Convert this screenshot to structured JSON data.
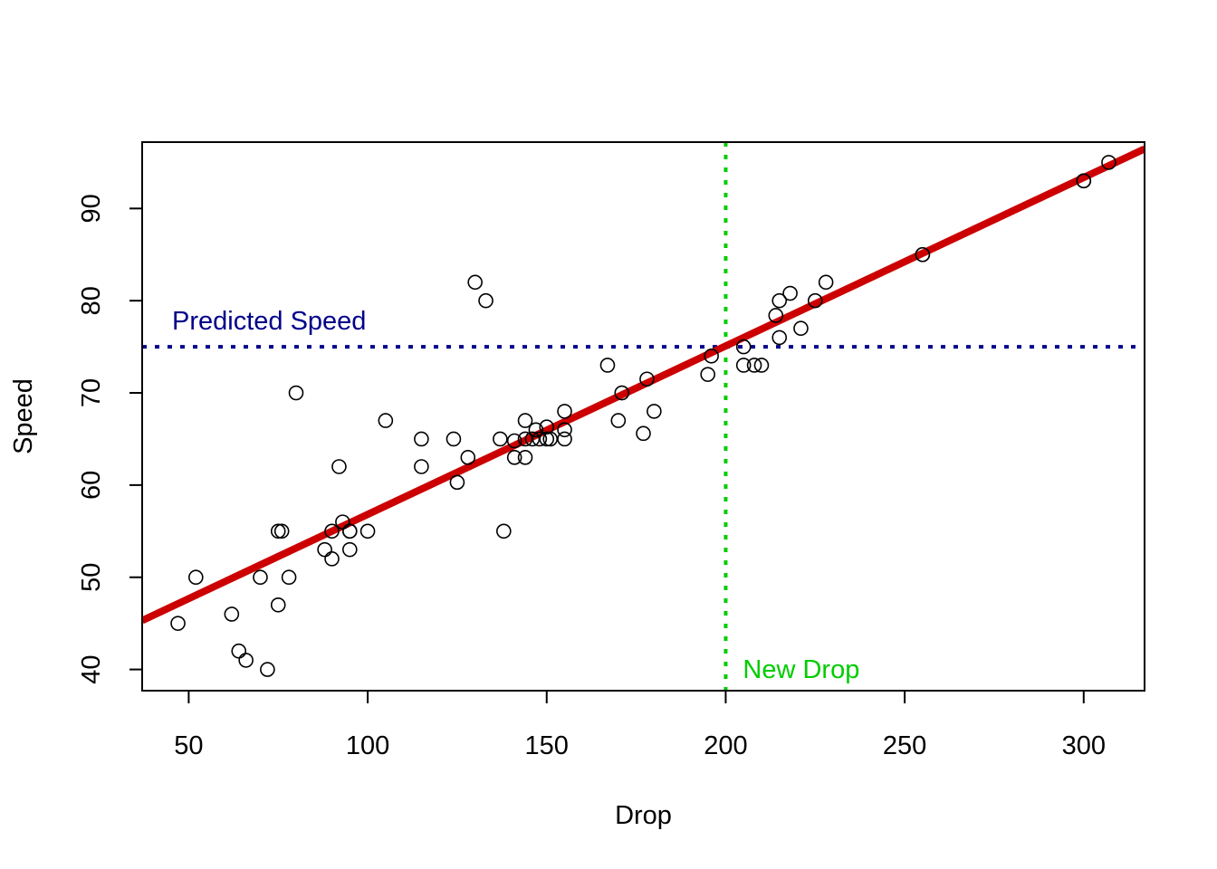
{
  "chart_data": {
    "type": "scatter",
    "title": "",
    "xlabel": "Drop",
    "ylabel": "Speed",
    "xlim": [
      37,
      317
    ],
    "ylim": [
      37.7,
      97.2
    ],
    "x_ticks": [
      50,
      100,
      150,
      200,
      250,
      300
    ],
    "y_ticks": [
      40,
      50,
      60,
      70,
      80,
      90
    ],
    "grid": false,
    "legend": "none",
    "points": [
      [
        47,
        45
      ],
      [
        52,
        50
      ],
      [
        62,
        46
      ],
      [
        64,
        42
      ],
      [
        66,
        41
      ],
      [
        70,
        50
      ],
      [
        72,
        40
      ],
      [
        75,
        47
      ],
      [
        75,
        55
      ],
      [
        76,
        55
      ],
      [
        78,
        50
      ],
      [
        80,
        70
      ],
      [
        88,
        53
      ],
      [
        90,
        52
      ],
      [
        90,
        55
      ],
      [
        92,
        62
      ],
      [
        93,
        56
      ],
      [
        95,
        53
      ],
      [
        95,
        55
      ],
      [
        95,
        55
      ],
      [
        100,
        55
      ],
      [
        105,
        67
      ],
      [
        115,
        65
      ],
      [
        115,
        62
      ],
      [
        124,
        65
      ],
      [
        125,
        60.3
      ],
      [
        128,
        63
      ],
      [
        130,
        82
      ],
      [
        133,
        80
      ],
      [
        137,
        65
      ],
      [
        138,
        55
      ],
      [
        141,
        64.8
      ],
      [
        141,
        63
      ],
      [
        144,
        67
      ],
      [
        144,
        65
      ],
      [
        144,
        63
      ],
      [
        146,
        65
      ],
      [
        147,
        66
      ],
      [
        148,
        65
      ],
      [
        150,
        66.3
      ],
      [
        150,
        65
      ],
      [
        151,
        65
      ],
      [
        155,
        68
      ],
      [
        155,
        65
      ],
      [
        155,
        66
      ],
      [
        167,
        73
      ],
      [
        170,
        67
      ],
      [
        171,
        70
      ],
      [
        177,
        65.6
      ],
      [
        178,
        71.5
      ],
      [
        180,
        68
      ],
      [
        195,
        72
      ],
      [
        196,
        74
      ],
      [
        205,
        75
      ],
      [
        205,
        73
      ],
      [
        208,
        73
      ],
      [
        210,
        73
      ],
      [
        214,
        78.4
      ],
      [
        215,
        80
      ],
      [
        215,
        76
      ],
      [
        218,
        80.8
      ],
      [
        221,
        77
      ],
      [
        225,
        80
      ],
      [
        228,
        82
      ],
      [
        255,
        85
      ],
      [
        255,
        85
      ],
      [
        300,
        93
      ],
      [
        300,
        93
      ],
      [
        307,
        95
      ]
    ],
    "regression_line": {
      "intercept": 38.55,
      "slope": 0.1827,
      "color": "#cc0000"
    },
    "hline": {
      "y": 75,
      "label": "Predicted Speed",
      "color": "#00008b",
      "style": "dotted"
    },
    "vline": {
      "x": 200,
      "label": "New Drop",
      "color": "#00cd00",
      "style": "dotted"
    },
    "point_style": "open-circle"
  }
}
